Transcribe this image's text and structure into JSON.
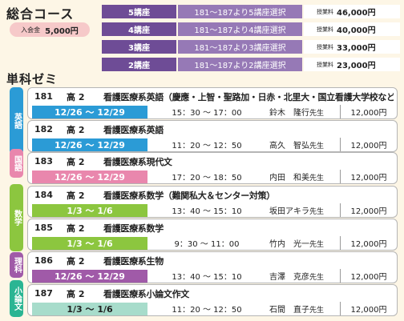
{
  "sogo": {
    "title": "総合コース",
    "nyukai_label": "入会金",
    "nyukai_value": "5,000円",
    "plans": [
      {
        "name": "5講座",
        "desc": "181～187より5講座選択",
        "fee_label": "授業料",
        "fee": "46,000円"
      },
      {
        "name": "4講座",
        "desc": "181～187より4講座選択",
        "fee_label": "授業料",
        "fee": "40,000円"
      },
      {
        "name": "3講座",
        "desc": "181～187より3講座選択",
        "fee_label": "授業料",
        "fee": "33,000円"
      },
      {
        "name": "2講座",
        "desc": "181～187より2講座選択",
        "fee_label": "授業料",
        "fee": "23,000円"
      }
    ]
  },
  "tanka": {
    "title": "単科ゼミ",
    "subjects": [
      {
        "label": "英語",
        "color": "#2b9bd6"
      },
      {
        "label": "国語",
        "color": "#e987ad"
      },
      {
        "label": "数学",
        "color": "#8cc63f"
      },
      {
        "label": "理科",
        "color": "#a05aa8"
      },
      {
        "label": "小論文",
        "color": "#2bb593"
      }
    ],
    "courses": [
      {
        "no": "181",
        "grade": "高 2",
        "title": "看護医療系英語（慶應・上智・聖路加・日赤・北里大・国立看護大学校など難関大）",
        "dates": "12/26 ～ 12/29",
        "time": "15：30 ～ 17：00",
        "teacher": "鈴木　隆行",
        "suffix": "先生",
        "price": "12,000円",
        "bar_color": "#2b9bd6",
        "bar_text_color": "#ffffff"
      },
      {
        "no": "182",
        "grade": "高 2",
        "title": "看護医療系英語",
        "dates": "12/26 ～ 12/29",
        "time": "11：20 ～ 12：50",
        "teacher": "高久　智弘",
        "suffix": "先生",
        "price": "12,000円",
        "bar_color": "#2b9bd6",
        "bar_text_color": "#ffffff"
      },
      {
        "no": "183",
        "grade": "高 2",
        "title": "看護医療系現代文",
        "dates": "12/26 ～ 12/29",
        "time": "17：20 ～ 18：50",
        "teacher": "内田　和美",
        "suffix": "先生",
        "price": "12,000円",
        "bar_color": "#e987ad",
        "bar_text_color": "#ffffff"
      },
      {
        "no": "184",
        "grade": "高 2",
        "title": "看護医療系数学（難関私大＆センター対策）",
        "dates": "1/3 ～ 1/6",
        "time": "13：40 ～ 15：10",
        "teacher": "坂田アキラ",
        "suffix": "先生",
        "price": "12,000円",
        "bar_color": "#8cc63f",
        "bar_text_color": "#ffffff"
      },
      {
        "no": "185",
        "grade": "高 2",
        "title": "看護医療系数学",
        "dates": "1/3 ～ 1/6",
        "time": "9：30 ～ 11：00",
        "teacher": "竹内　光一",
        "suffix": "先生",
        "price": "12,000円",
        "bar_color": "#8cc63f",
        "bar_text_color": "#ffffff"
      },
      {
        "no": "186",
        "grade": "高 2",
        "title": "看護医療系生物",
        "dates": "12/26 ～ 12/29",
        "time": "13：40 ～ 15：10",
        "teacher": "吉澤　克彦",
        "suffix": "先生",
        "price": "12,000円",
        "bar_color": "#a05aa8",
        "bar_text_color": "#ffffff"
      },
      {
        "no": "187",
        "grade": "高 2",
        "title": "看護医療系小論文作文",
        "dates": "1/3 ～ 1/6",
        "time": "11：20 ～ 12：50",
        "teacher": "石間　直子",
        "suffix": "先生",
        "price": "12,000円",
        "bar_color": "#a7dccb",
        "bar_text_color": "#1e1e1e"
      }
    ]
  }
}
